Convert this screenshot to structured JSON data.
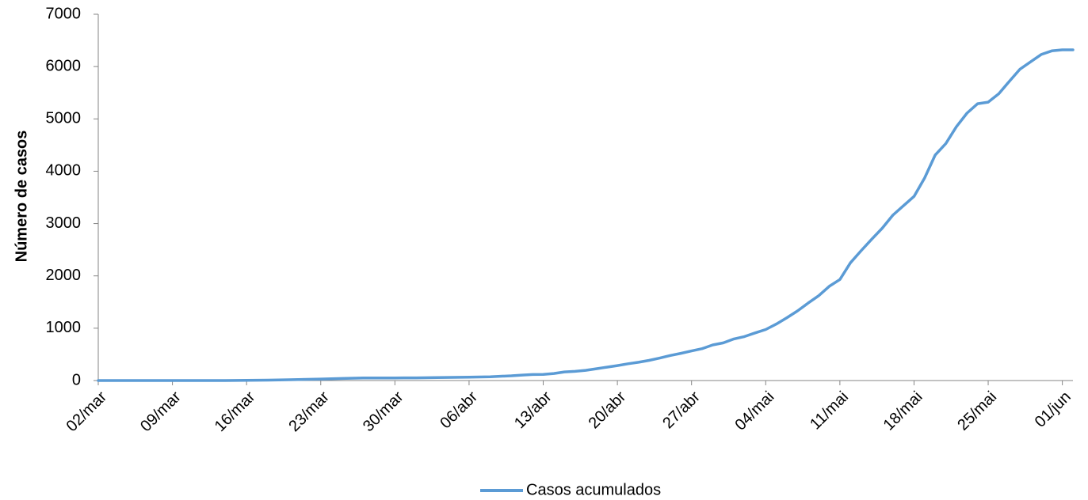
{
  "chart_data": {
    "type": "line",
    "title": "",
    "xlabel": "",
    "ylabel": "Número de casos",
    "ylim": [
      0,
      7000
    ],
    "yticks": [
      0,
      1000,
      2000,
      3000,
      4000,
      5000,
      6000,
      7000
    ],
    "xlim": [
      "2020-03-02",
      "2020-06-02"
    ],
    "xticks": [
      {
        "date": "2020-03-02",
        "label": "02/mar"
      },
      {
        "date": "2020-03-09",
        "label": "09/mar"
      },
      {
        "date": "2020-03-16",
        "label": "16/mar"
      },
      {
        "date": "2020-03-23",
        "label": "23/mar"
      },
      {
        "date": "2020-03-30",
        "label": "30/mar"
      },
      {
        "date": "2020-04-06",
        "label": "06/abr"
      },
      {
        "date": "2020-04-13",
        "label": "13/abr"
      },
      {
        "date": "2020-04-20",
        "label": "20/abr"
      },
      {
        "date": "2020-04-27",
        "label": "27/abr"
      },
      {
        "date": "2020-05-04",
        "label": "04/mai"
      },
      {
        "date": "2020-05-11",
        "label": "11/mai"
      },
      {
        "date": "2020-05-18",
        "label": "18/mai"
      },
      {
        "date": "2020-05-25",
        "label": "25/mai"
      },
      {
        "date": "2020-06-01",
        "label": "01/jun"
      }
    ],
    "grid": false,
    "legend_position": "bottom",
    "series": [
      {
        "name": "Casos acumulados",
        "color": "#5B9BD5",
        "points": [
          [
            "2020-03-02",
            0
          ],
          [
            "2020-03-09",
            0
          ],
          [
            "2020-03-14",
            0
          ],
          [
            "2020-03-16",
            5
          ],
          [
            "2020-03-18",
            8
          ],
          [
            "2020-03-20",
            15
          ],
          [
            "2020-03-23",
            28
          ],
          [
            "2020-03-25",
            40
          ],
          [
            "2020-03-27",
            48
          ],
          [
            "2020-03-30",
            50
          ],
          [
            "2020-04-01",
            52
          ],
          [
            "2020-04-03",
            57
          ],
          [
            "2020-04-06",
            65
          ],
          [
            "2020-04-08",
            72
          ],
          [
            "2020-04-10",
            90
          ],
          [
            "2020-04-11",
            105
          ],
          [
            "2020-04-12",
            115
          ],
          [
            "2020-04-13",
            118
          ],
          [
            "2020-04-14",
            135
          ],
          [
            "2020-04-15",
            165
          ],
          [
            "2020-04-16",
            175
          ],
          [
            "2020-04-17",
            195
          ],
          [
            "2020-04-18",
            225
          ],
          [
            "2020-04-19",
            255
          ],
          [
            "2020-04-20",
            285
          ],
          [
            "2020-04-21",
            320
          ],
          [
            "2020-04-22",
            350
          ],
          [
            "2020-04-23",
            385
          ],
          [
            "2020-04-24",
            430
          ],
          [
            "2020-04-25",
            480
          ],
          [
            "2020-04-26",
            520
          ],
          [
            "2020-04-27",
            565
          ],
          [
            "2020-04-28",
            610
          ],
          [
            "2020-04-29",
            680
          ],
          [
            "2020-04-30",
            720
          ],
          [
            "2020-05-01",
            795
          ],
          [
            "2020-05-02",
            840
          ],
          [
            "2020-05-03",
            910
          ],
          [
            "2020-05-04",
            975
          ],
          [
            "2020-05-05",
            1080
          ],
          [
            "2020-05-06",
            1200
          ],
          [
            "2020-05-07",
            1330
          ],
          [
            "2020-05-08",
            1480
          ],
          [
            "2020-05-09",
            1620
          ],
          [
            "2020-05-10",
            1800
          ],
          [
            "2020-05-11",
            1930
          ],
          [
            "2020-05-12",
            2250
          ],
          [
            "2020-05-13",
            2480
          ],
          [
            "2020-05-14",
            2700
          ],
          [
            "2020-05-15",
            2910
          ],
          [
            "2020-05-16",
            3160
          ],
          [
            "2020-05-17",
            3340
          ],
          [
            "2020-05-18",
            3520
          ],
          [
            "2020-05-19",
            3870
          ],
          [
            "2020-05-20",
            4310
          ],
          [
            "2020-05-21",
            4530
          ],
          [
            "2020-05-22",
            4850
          ],
          [
            "2020-05-23",
            5110
          ],
          [
            "2020-05-24",
            5290
          ],
          [
            "2020-05-25",
            5320
          ],
          [
            "2020-05-26",
            5480
          ],
          [
            "2020-05-27",
            5720
          ],
          [
            "2020-05-28",
            5950
          ],
          [
            "2020-05-29",
            6090
          ],
          [
            "2020-05-30",
            6230
          ],
          [
            "2020-05-31",
            6300
          ],
          [
            "2020-06-01",
            6320
          ],
          [
            "2020-06-02",
            6320
          ]
        ]
      }
    ]
  }
}
